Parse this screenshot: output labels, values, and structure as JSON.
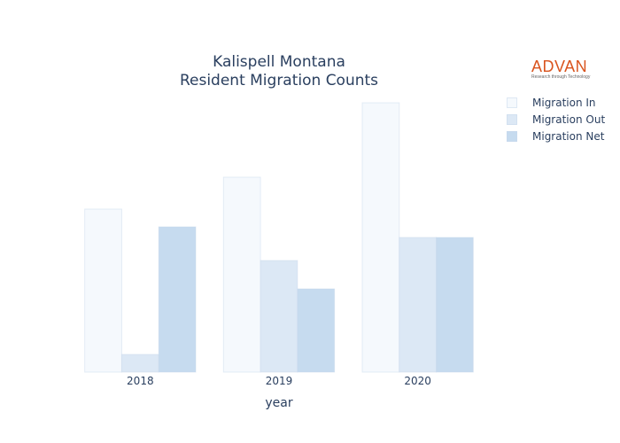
{
  "chart_data": {
    "type": "bar",
    "title": [
      "Kalispell Montana",
      "Resident Migration Counts"
    ],
    "xlabel": "year",
    "ylabel": "",
    "categories": [
      "2018",
      "2019",
      "2020"
    ],
    "series": [
      {
        "name": "Migration In",
        "values": [
          184,
          220,
          304
        ],
        "color": "#f5f9fd"
      },
      {
        "name": "Migration Out",
        "values": [
          20,
          126,
          152
        ],
        "color": "#dce8f5"
      },
      {
        "name": "Migration Net",
        "values": [
          164,
          94,
          152
        ],
        "color": "#c6dbef"
      }
    ],
    "ylim": [
      0,
      304
    ],
    "grid": false,
    "legend_position": "top-right"
  },
  "logo": {
    "name": "advan-logo",
    "word": "ADVAN",
    "tagline": "Research through Technology",
    "color": "#d9541e"
  }
}
